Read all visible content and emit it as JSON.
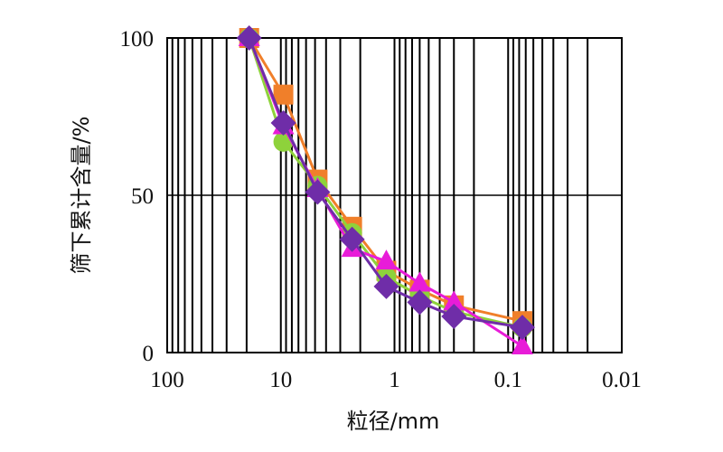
{
  "chart_data": {
    "type": "line",
    "title": "",
    "xlabel": "粒径/mm",
    "ylabel": "筛下累计含量/%",
    "xscale": "log",
    "x_reversed": true,
    "xlim": [
      100,
      0.01
    ],
    "ylim": [
      0,
      100
    ],
    "x_tick_labels": [
      "100",
      "10",
      "1",
      "0.1",
      "0.01"
    ],
    "y_tick_labels": [
      "0",
      "50",
      "100"
    ],
    "grid": "vertical log minor lines + horizontal at 50",
    "legend": "none",
    "x": [
      19,
      9.5,
      4.75,
      2.36,
      1.18,
      0.6,
      0.3,
      0.075
    ],
    "series": [
      {
        "name": "series-orange",
        "color": "#F07F2A",
        "marker": "square",
        "values": [
          100,
          82,
          55,
          40,
          26,
          20,
          15,
          10
        ]
      },
      {
        "name": "series-green",
        "color": "#8ED23B",
        "marker": "circle",
        "values": [
          100,
          67,
          53,
          38,
          24,
          18,
          13,
          8
        ]
      },
      {
        "name": "series-pink",
        "color": "#E81CD8",
        "marker": "triangle",
        "values": [
          100,
          72,
          52,
          33,
          29,
          22,
          16,
          2
        ]
      },
      {
        "name": "series-purple",
        "color": "#6F2DA8",
        "marker": "diamond",
        "values": [
          100,
          73,
          51,
          36,
          21,
          16,
          11.5,
          8
        ]
      }
    ]
  },
  "axes": {
    "xlabel": "粒径/mm",
    "ylabel": "筛下累计含量/%"
  }
}
